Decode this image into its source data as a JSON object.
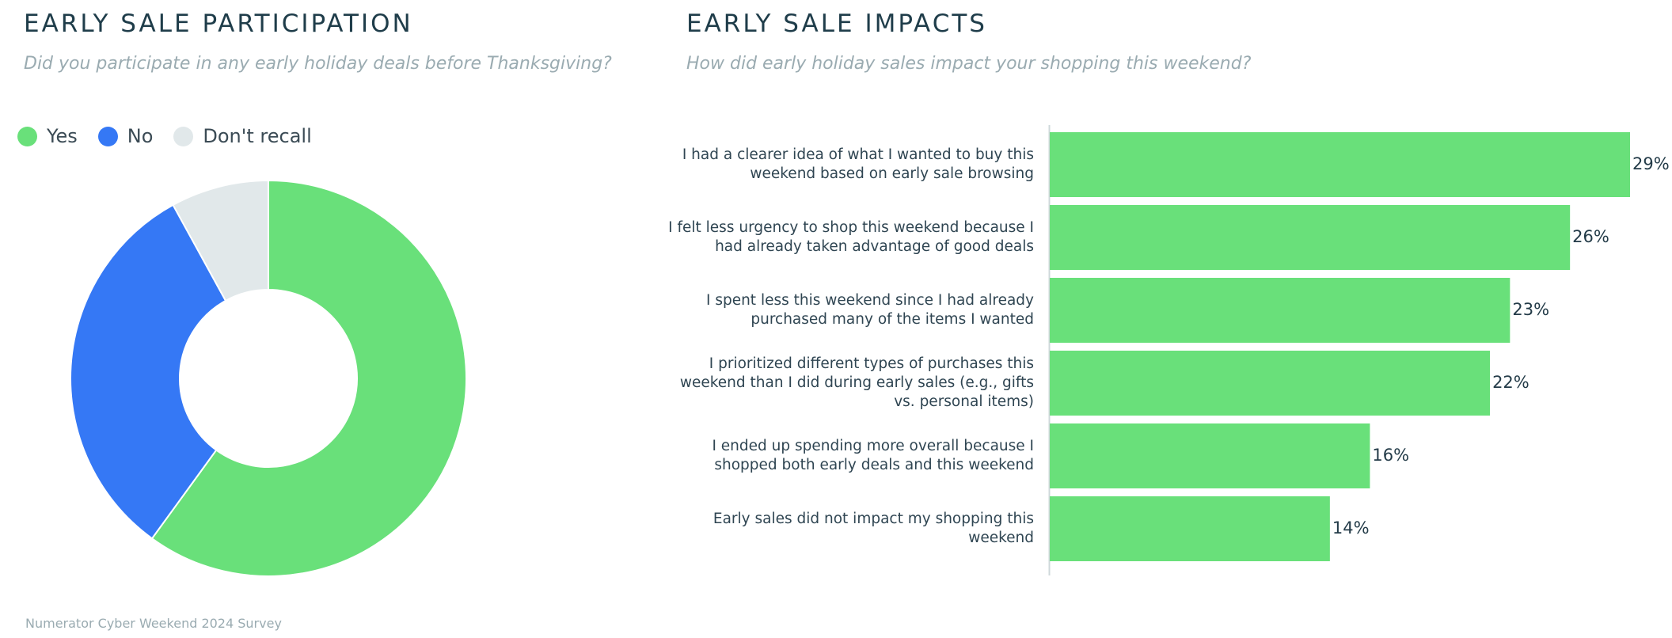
{
  "footer": "Numerator Cyber Weekend 2024 Survey",
  "chart_data": [
    {
      "type": "pie",
      "title": "EARLY SALE PARTICIPATION",
      "subtitle": "Did you participate in any early holiday deals before Thanksgiving?",
      "donut": true,
      "legend": "top-left",
      "slices": [
        {
          "label": "Yes",
          "value": 60,
          "color": "#69e07a"
        },
        {
          "label": "No",
          "value": 32,
          "color": "#3578f5"
        },
        {
          "label": "Don't recall",
          "value": 8,
          "color": "#e1e8ea"
        }
      ]
    },
    {
      "type": "bar",
      "orientation": "horizontal",
      "title": "EARLY SALE IMPACTS",
      "subtitle": "How did early holiday sales impact your shopping this weekend?",
      "color": "#69e07a",
      "categories": [
        "I had a clearer idea of what I wanted to buy this weekend based on early sale browsing",
        "I felt less urgency to shop this weekend because I had already taken advantage of good deals",
        "I spent less this weekend since I had already purchased many of the items I wanted",
        "I prioritized different types of purchases this weekend than I did during early sales (e.g., gifts vs. personal items)",
        "I ended up spending more overall because I shopped both early deals and this weekend",
        "Early sales did not impact my shopping this weekend"
      ],
      "category_lines": [
        [
          "I had a clearer idea of what I wanted to buy this",
          "weekend based on early sale browsing"
        ],
        [
          "I felt less urgency to shop this weekend because I",
          "had already taken advantage of good deals"
        ],
        [
          "I spent less this weekend since I had already",
          "purchased many of the items I wanted"
        ],
        [
          "I prioritized different types of purchases this",
          "weekend than I did during early sales (e.g., gifts",
          "vs. personal items)"
        ],
        [
          "I ended up spending more overall because I",
          "shopped both early deals and this weekend"
        ],
        [
          "Early sales did not impact my shopping this",
          "weekend"
        ]
      ],
      "values": [
        29,
        26,
        23,
        22,
        16,
        14
      ],
      "value_labels": [
        "29%",
        "26%",
        "23%",
        "22%",
        "16%",
        "14%"
      ],
      "xlim": [
        0,
        29
      ]
    }
  ]
}
